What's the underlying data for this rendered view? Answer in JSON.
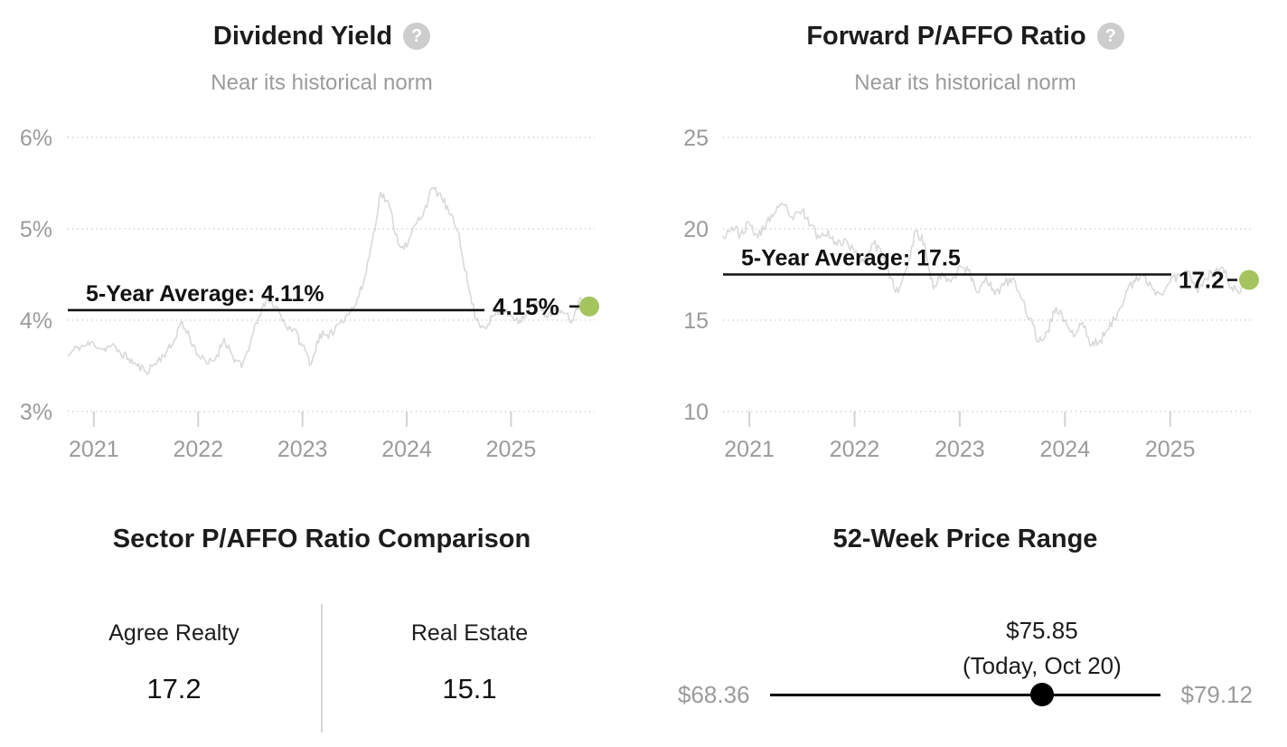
{
  "colors": {
    "text": "#1c1c1c",
    "muted": "#9b9b9b",
    "grid": "#cccccc",
    "series_line": "#d9d9d9",
    "average_line": "#111111",
    "marker_green": "#a4c45d",
    "slider_black": "#000000",
    "help_icon_bg": "#cdcdcd",
    "divider": "#d5d5d5"
  },
  "chart_data": [
    {
      "type": "line",
      "title": "Dividend Yield",
      "help_icon": "question-mark",
      "subtitle": "Near its historical norm",
      "unit": "%",
      "x_start": "2020-10",
      "x_end": "2025-10",
      "x_tick_labels": [
        "2021",
        "2022",
        "2023",
        "2024",
        "2025"
      ],
      "y_tick_labels": [
        "6%",
        "5%",
        "4%",
        "3%"
      ],
      "y_tick_values": [
        6,
        5,
        4,
        3
      ],
      "ylim": [
        3,
        6
      ],
      "grid": "dotted-horizontal",
      "average": {
        "label": "5-Year Average: 4.11%",
        "value": 4.11
      },
      "current": {
        "label": "4.15%",
        "value": 4.15
      },
      "series_monthly": [
        3.6,
        3.7,
        3.72,
        3.75,
        3.68,
        3.72,
        3.65,
        3.58,
        3.5,
        3.44,
        3.52,
        3.62,
        3.72,
        3.98,
        3.82,
        3.62,
        3.52,
        3.58,
        3.8,
        3.6,
        3.48,
        3.75,
        4.05,
        4.22,
        4.15,
        3.95,
        3.9,
        3.72,
        3.52,
        3.85,
        3.8,
        3.95,
        4.05,
        4.15,
        4.4,
        4.85,
        5.4,
        5.25,
        4.85,
        4.8,
        5.05,
        5.2,
        5.45,
        5.35,
        5.15,
        4.95,
        4.4,
        4.0,
        3.92,
        4.05,
        4.1,
        4.05,
        4.0,
        4.1,
        4.2,
        4.05,
        4.1,
        4.08,
        3.98,
        4.25,
        4.15
      ],
      "noise_amplitude": 0.05,
      "noise_seed": 11
    },
    {
      "type": "line",
      "title": "Forward P/AFFO Ratio",
      "help_icon": "question-mark",
      "subtitle": "Near its historical norm",
      "unit": "x",
      "x_start": "2020-10",
      "x_end": "2025-10",
      "x_tick_labels": [
        "2021",
        "2022",
        "2023",
        "2024",
        "2025"
      ],
      "y_tick_labels": [
        "25",
        "20",
        "15",
        "10"
      ],
      "y_tick_values": [
        25,
        20,
        15,
        10
      ],
      "ylim": [
        10,
        25
      ],
      "grid": "dotted-horizontal",
      "average": {
        "label": "5-Year Average: 17.5",
        "value": 17.5
      },
      "current": {
        "label": "17.2",
        "value": 17.2
      },
      "series_monthly": [
        19.6,
        20.1,
        19.7,
        20.3,
        19.5,
        20.4,
        20.9,
        21.3,
        20.5,
        21.0,
        20.2,
        19.5,
        19.9,
        19.1,
        19.4,
        18.7,
        18.2,
        19.2,
        18.9,
        17.3,
        16.5,
        17.9,
        19.9,
        19.2,
        16.7,
        17.6,
        17.1,
        18.0,
        17.7,
        16.5,
        17.4,
        16.4,
        16.9,
        17.3,
        16.2,
        15.1,
        13.8,
        14.4,
        15.7,
        15.0,
        14.1,
        14.9,
        13.6,
        13.9,
        14.5,
        15.4,
        16.6,
        17.1,
        17.4,
        16.7,
        16.4,
        17.1,
        17.5,
        17.7,
        16.7,
        17.3,
        17.6,
        17.9,
        16.8,
        16.5,
        17.2
      ],
      "noise_amplitude": 0.28,
      "noise_seed": 23
    }
  ],
  "comparison": {
    "title": "Sector P/AFFO Ratio Comparison",
    "columns": [
      {
        "label": "Agree Realty",
        "value": "17.2"
      },
      {
        "label": "Real Estate",
        "value": "15.1"
      }
    ]
  },
  "price_range": {
    "title": "52-Week Price Range",
    "current_price": "$75.85",
    "current_note": "(Today, Oct 20)",
    "low_label": "$68.36",
    "high_label": "$79.12",
    "low_value": 68.36,
    "high_value": 79.12,
    "current_value": 75.85
  }
}
